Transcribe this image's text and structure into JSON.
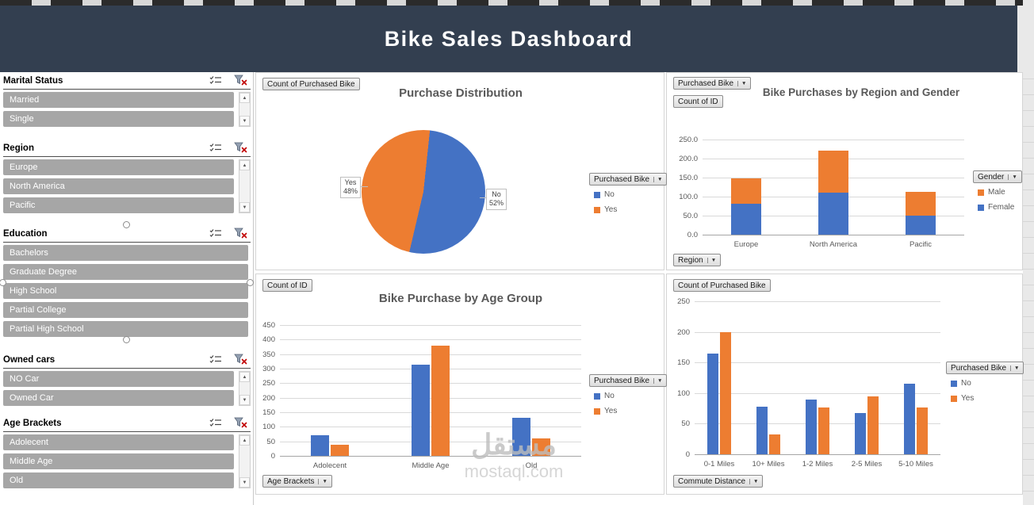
{
  "header": {
    "title": "Bike Sales Dashboard"
  },
  "colors": {
    "blue": "#4472C4",
    "orange": "#ED7D31",
    "header_bg": "#333F50",
    "slicer_item_bg": "#A6A6A6"
  },
  "slicers": [
    {
      "name": "marital-status",
      "title": "Marital Status",
      "items": [
        "Married",
        "Single"
      ],
      "scrollbar": true,
      "handles": false
    },
    {
      "name": "region",
      "title": "Region",
      "items": [
        "Europe",
        "North America",
        "Pacific"
      ],
      "scrollbar": true,
      "handles": false
    },
    {
      "name": "education",
      "title": "Education",
      "items": [
        "Bachelors",
        "Graduate Degree",
        "High School",
        "Partial College",
        "Partial High School"
      ],
      "scrollbar": false,
      "handles": true
    },
    {
      "name": "owned-cars",
      "title": "Owned cars",
      "items": [
        "NO Car",
        "Owned Car"
      ],
      "scrollbar": true,
      "handles": false
    },
    {
      "name": "age-brackets",
      "title": "Age Brackets",
      "items": [
        "Adolecent",
        "Middle Age",
        "Old"
      ],
      "scrollbar": true,
      "handles": false
    }
  ],
  "chart_data": [
    {
      "id": "purchase-distribution",
      "type": "pie",
      "title": "Purchase Distribution",
      "filter_buttons": [
        {
          "label": "Count of Purchased Bike",
          "arrow": false
        }
      ],
      "legend": {
        "title": "Purchased Bike",
        "items": [
          {
            "label": "No",
            "color": "#4472C4"
          },
          {
            "label": "Yes",
            "color": "#ED7D31"
          }
        ]
      },
      "slices": [
        {
          "label": "No",
          "value": 52,
          "color": "#4472C4"
        },
        {
          "label": "Yes",
          "value": 48,
          "color": "#ED7D31"
        }
      ],
      "callouts": [
        {
          "label": "Yes",
          "pct": "48%"
        },
        {
          "label": "No",
          "pct": "52%"
        }
      ]
    },
    {
      "id": "region-gender",
      "type": "stacked-bar",
      "title": "Bike Purchases by Region and Gender",
      "filter_buttons": [
        {
          "label": "Purchased Bike",
          "arrow": true
        },
        {
          "label": "Count of ID",
          "arrow": false
        }
      ],
      "axis_button": "Region",
      "legend": {
        "title": "Gender",
        "items": [
          {
            "label": "Male",
            "color": "#ED7D31"
          },
          {
            "label": "Female",
            "color": "#4472C4"
          }
        ]
      },
      "categories": [
        "Europe",
        "North America",
        "Pacific"
      ],
      "series": [
        {
          "name": "Female",
          "color": "#4472C4",
          "values": [
            82,
            110,
            50
          ]
        },
        {
          "name": "Male",
          "color": "#ED7D31",
          "values": [
            66,
            110,
            62
          ]
        }
      ],
      "ylim": [
        0,
        250
      ],
      "ytick_step": 50,
      "ytick_decimals": 1
    },
    {
      "id": "age-group",
      "type": "bar",
      "title": "Bike Purchase by Age Group",
      "filter_buttons": [
        {
          "label": "Count of ID",
          "arrow": false
        }
      ],
      "axis_button": "Age Brackets",
      "legend": {
        "title": "Purchased Bike",
        "items": [
          {
            "label": "No",
            "color": "#4472C4"
          },
          {
            "label": "Yes",
            "color": "#ED7D31"
          }
        ]
      },
      "categories": [
        "Adolecent",
        "Middle Age",
        "Old"
      ],
      "series": [
        {
          "name": "No",
          "color": "#4472C4",
          "values": [
            70,
            315,
            130
          ]
        },
        {
          "name": "Yes",
          "color": "#ED7D31",
          "values": [
            38,
            380,
            60
          ]
        }
      ],
      "ylim": [
        0,
        450
      ],
      "ytick_step": 50,
      "ytick_decimals": 0
    },
    {
      "id": "commute-distance",
      "type": "bar",
      "title": "",
      "filter_buttons": [
        {
          "label": "Count of Purchased Bike",
          "arrow": false
        }
      ],
      "axis_button": "Commute Distance",
      "legend": {
        "title": "Purchased Bike",
        "items": [
          {
            "label": "No",
            "color": "#4472C4"
          },
          {
            "label": "Yes",
            "color": "#ED7D31"
          }
        ]
      },
      "categories": [
        "0-1 Miles",
        "10+ Miles",
        "1-2 Miles",
        "2-5 Miles",
        "5-10 Miles"
      ],
      "series": [
        {
          "name": "No",
          "color": "#4472C4",
          "values": [
            165,
            78,
            90,
            67,
            115
          ]
        },
        {
          "name": "Yes",
          "color": "#ED7D31",
          "values": [
            200,
            33,
            77,
            95,
            77
          ]
        }
      ],
      "ylim": [
        0,
        250
      ],
      "ytick_step": 50,
      "ytick_decimals": 0
    }
  ],
  "watermark": {
    "brand": "مستقل",
    "domain": "mostaql.com"
  }
}
